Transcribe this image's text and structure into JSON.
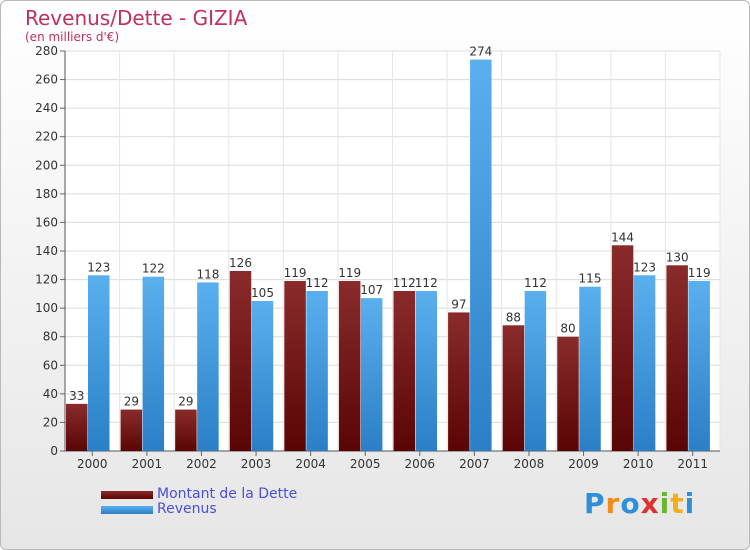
{
  "chart_data": {
    "type": "bar",
    "title": "Revenus/Dette - GIZIA",
    "subtitle": "(en milliers d'€)",
    "categories": [
      "2000",
      "2001",
      "2002",
      "2003",
      "2004",
      "2005",
      "2006",
      "2007",
      "2008",
      "2009",
      "2010",
      "2011"
    ],
    "series": [
      {
        "name": "Montant de la Dette",
        "color": "#7a1818",
        "values": [
          33,
          29,
          29,
          126,
          119,
          119,
          112,
          97,
          88,
          80,
          144,
          130
        ]
      },
      {
        "name": "Revenus",
        "color": "#4aa3e6",
        "values": [
          123,
          122,
          118,
          105,
          112,
          107,
          112,
          274,
          112,
          115,
          123,
          119
        ]
      }
    ],
    "ylim": [
      0,
      280
    ],
    "yticks": [
      0,
      20,
      40,
      60,
      80,
      100,
      120,
      140,
      160,
      180,
      200,
      220,
      240,
      260,
      280
    ],
    "grid": true,
    "legend_position": "bottom-left"
  },
  "logo": {
    "letters": [
      "P",
      "r",
      "o",
      "x",
      "i",
      "t",
      "i"
    ],
    "colors": [
      "#2f8fd8",
      "#f08c1a",
      "#2f8fd8",
      "#e03030",
      "#66b82a",
      "#f0b01a",
      "#2f8fd8"
    ]
  }
}
